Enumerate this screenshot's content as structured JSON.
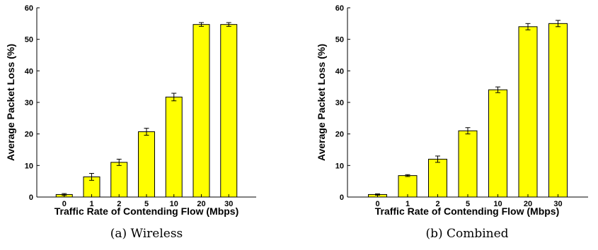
{
  "chart_data": [
    {
      "type": "bar",
      "caption": "(a) Wireless",
      "xlabel": "Traffic Rate of Contending Flow (Mbps)",
      "ylabel": "Average Packet Loss (%)",
      "categories": [
        "0",
        "1",
        "2",
        "5",
        "10",
        "20",
        "30"
      ],
      "values": [
        0.8,
        6.4,
        11.0,
        20.7,
        31.7,
        54.7,
        54.7
      ],
      "errors": [
        0.3,
        1.1,
        1.0,
        1.1,
        1.2,
        0.6,
        0.6
      ],
      "ylim": [
        0,
        60
      ],
      "yticks": [
        0,
        10,
        20,
        30,
        40,
        50,
        60
      ],
      "bar_color": "#ffff00",
      "grid": false
    },
    {
      "type": "bar",
      "caption": "(b) Combined",
      "xlabel": "Traffic Rate of Contending Flow (Mbps)",
      "ylabel": "Average Packet Loss (%)",
      "categories": [
        "0",
        "1",
        "2",
        "5",
        "10",
        "20",
        "30"
      ],
      "values": [
        0.8,
        6.8,
        12.0,
        21.0,
        34.0,
        54.0,
        55.0
      ],
      "errors": [
        0.2,
        0.3,
        1.0,
        1.0,
        0.9,
        1.0,
        1.0
      ],
      "ylim": [
        0,
        60
      ],
      "yticks": [
        0,
        10,
        20,
        30,
        40,
        50,
        60
      ],
      "bar_color": "#ffff00",
      "grid": false
    }
  ]
}
